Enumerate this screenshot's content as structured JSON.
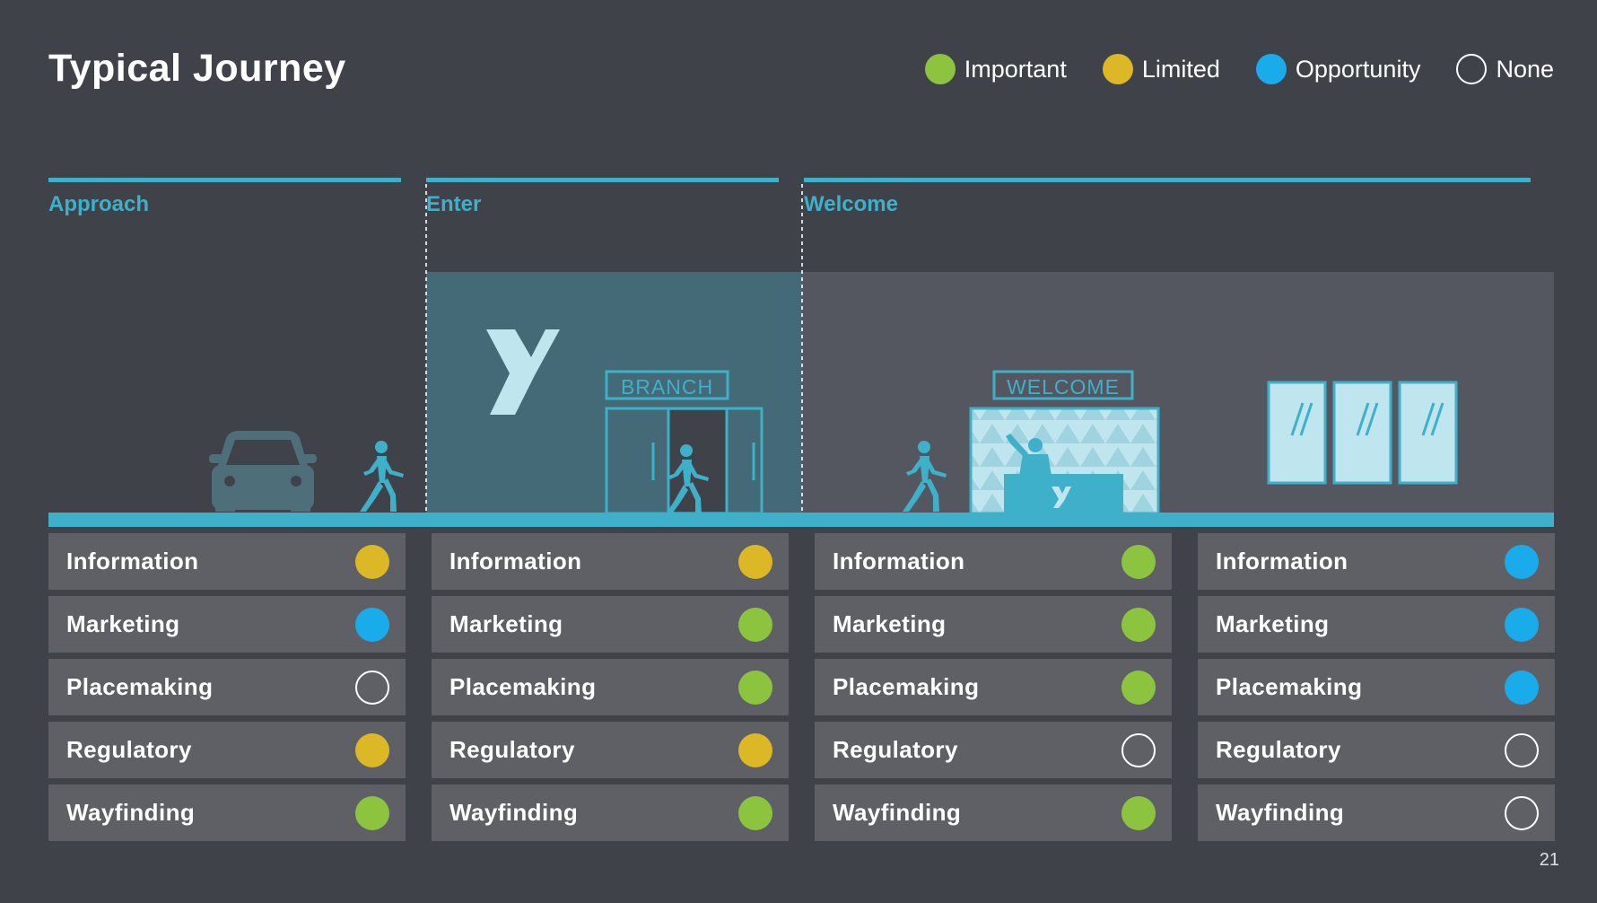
{
  "title": "Typical Journey",
  "legend": [
    {
      "label": "Important",
      "status": "important"
    },
    {
      "label": "Limited",
      "status": "limited"
    },
    {
      "label": "Opportunity",
      "status": "opportunity"
    },
    {
      "label": "None",
      "status": "none"
    }
  ],
  "stages": [
    "Approach",
    "Enter",
    "Welcome"
  ],
  "scene": {
    "branch_sign": "BRANCH",
    "welcome_sign": "WELCOME"
  },
  "columns": [
    [
      {
        "label": "Information",
        "status": "limited"
      },
      {
        "label": "Marketing",
        "status": "opportunity"
      },
      {
        "label": "Placemaking",
        "status": "none"
      },
      {
        "label": "Regulatory",
        "status": "limited"
      },
      {
        "label": "Wayfinding",
        "status": "important"
      }
    ],
    [
      {
        "label": "Information",
        "status": "limited"
      },
      {
        "label": "Marketing",
        "status": "important"
      },
      {
        "label": "Placemaking",
        "status": "important"
      },
      {
        "label": "Regulatory",
        "status": "limited"
      },
      {
        "label": "Wayfinding",
        "status": "important"
      }
    ],
    [
      {
        "label": "Information",
        "status": "important"
      },
      {
        "label": "Marketing",
        "status": "important"
      },
      {
        "label": "Placemaking",
        "status": "important"
      },
      {
        "label": "Regulatory",
        "status": "none"
      },
      {
        "label": "Wayfinding",
        "status": "important"
      }
    ],
    [
      {
        "label": "Information",
        "status": "opportunity"
      },
      {
        "label": "Marketing",
        "status": "opportunity"
      },
      {
        "label": "Placemaking",
        "status": "opportunity"
      },
      {
        "label": "Regulatory",
        "status": "none"
      },
      {
        "label": "Wayfinding",
        "status": "none"
      }
    ]
  ],
  "colors": {
    "background": "#3f4248",
    "accent": "#3eb0c9",
    "important": "#8dc43f",
    "limited": "#dcb726",
    "opportunity": "#1aabea"
  },
  "page_number": "21"
}
